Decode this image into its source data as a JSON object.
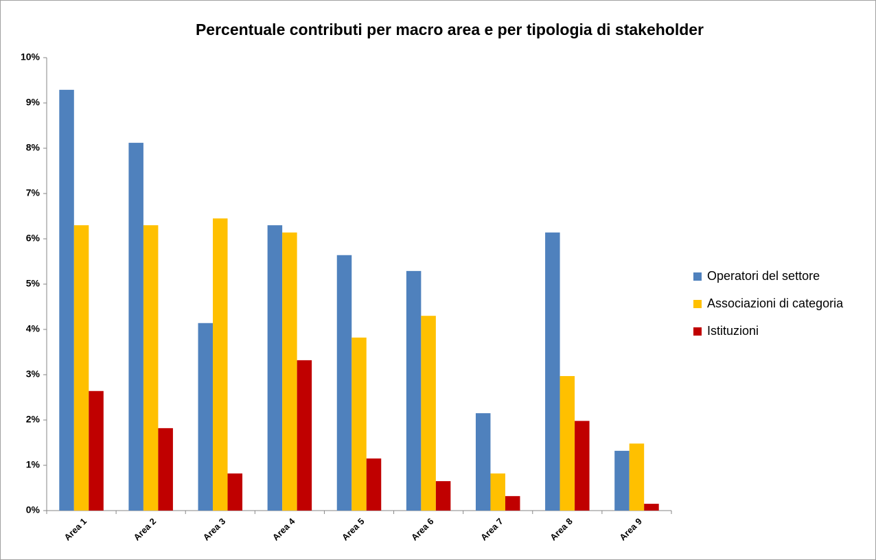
{
  "chart_data": {
    "type": "bar",
    "title": "Percentuale contributi per macro area e per tipologia di stakeholder",
    "categories": [
      "Area 1",
      "Area 2",
      "Area 3",
      "Area 4",
      "Area 5",
      "Area 6",
      "Area 7",
      "Area 8",
      "Area 9"
    ],
    "series": [
      {
        "name": "Operatori del settore",
        "color": "#4f81bd",
        "values": [
          9.29,
          8.12,
          4.14,
          6.3,
          5.64,
          5.29,
          2.15,
          6.14,
          1.32
        ]
      },
      {
        "name": "Associazioni di categoria",
        "color": "#ffc000",
        "values": [
          6.3,
          6.3,
          6.45,
          6.14,
          3.82,
          4.3,
          0.82,
          2.97,
          1.48
        ]
      },
      {
        "name": "Istituzioni",
        "color": "#c00000",
        "values": [
          2.64,
          1.82,
          0.82,
          3.32,
          1.15,
          0.65,
          0.32,
          1.98,
          0.15
        ]
      }
    ],
    "ylim": [
      0,
      10
    ],
    "yticks": [
      {
        "value": 0,
        "label": "0%"
      },
      {
        "value": 1,
        "label": "1%"
      },
      {
        "value": 2,
        "label": "2%"
      },
      {
        "value": 3,
        "label": "3%"
      },
      {
        "value": 4,
        "label": "4%"
      },
      {
        "value": 5,
        "label": "5%"
      },
      {
        "value": 6,
        "label": "6%"
      },
      {
        "value": 7,
        "label": "7%"
      },
      {
        "value": 8,
        "label": "8%"
      },
      {
        "value": 9,
        "label": "9%"
      },
      {
        "value": 10,
        "label": "10%"
      }
    ],
    "legend": "right"
  }
}
